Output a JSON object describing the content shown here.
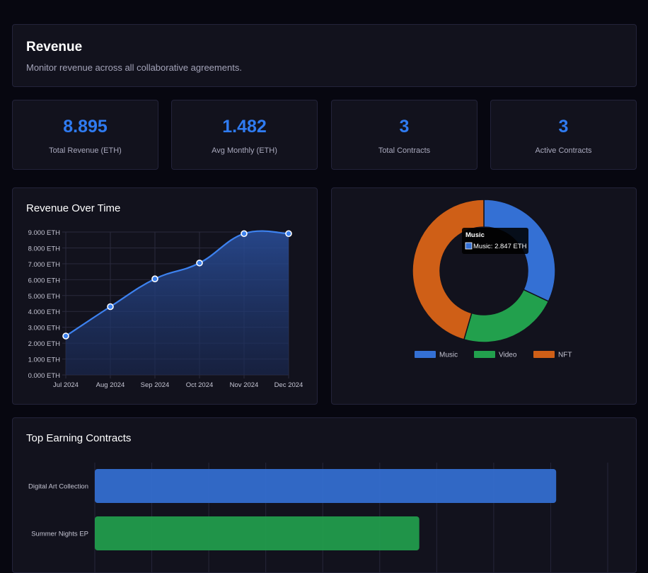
{
  "header": {
    "title": "Revenue",
    "subtitle": "Monitor revenue across all collaborative agreements."
  },
  "stats": [
    {
      "value": "8.895",
      "label": "Total Revenue (ETH)"
    },
    {
      "value": "1.482",
      "label": "Avg Monthly (ETH)"
    },
    {
      "value": "3",
      "label": "Total Contracts"
    },
    {
      "value": "3",
      "label": "Active Contracts"
    }
  ],
  "colors": {
    "accent": "#2f7bf1",
    "music": "#3470d4",
    "video": "#22a04d",
    "nft": "#cf5f17",
    "line": "#3d82f0"
  },
  "revenue_chart": {
    "title": "Revenue Over Time"
  },
  "category_chart": {
    "tooltip_title": "Music",
    "tooltip_text": "Music: 2.847 ETH"
  },
  "top_contracts": {
    "title": "Top Earning Contracts"
  },
  "chart_data": [
    {
      "type": "area",
      "title": "Revenue Over Time",
      "x": [
        "Jul 2024",
        "Aug 2024",
        "Sep 2024",
        "Oct 2024",
        "Nov 2024",
        "Dec 2024"
      ],
      "series": [
        {
          "values": [
            2.45,
            4.3,
            6.05,
            7.05,
            8.9,
            8.9
          ]
        }
      ],
      "yticks": [
        "0.000 ETH",
        "1.000 ETH",
        "2.000 ETH",
        "3.000 ETH",
        "4.000 ETH",
        "5.000 ETH",
        "6.000 ETH",
        "7.000 ETH",
        "8.000 ETH",
        "9.000 ETH"
      ],
      "ylim": [
        0,
        9
      ],
      "grid": true
    },
    {
      "type": "pie",
      "categories": [
        "Music",
        "Video",
        "NFT"
      ],
      "values": [
        2.847,
        2.0,
        4.048
      ],
      "legend": "bottom"
    },
    {
      "type": "bar",
      "title": "Top Earning Contracts",
      "categories": [
        "Digital Art Collection",
        "Summer Nights EP"
      ],
      "values": [
        4.048,
        2.847
      ],
      "xlim": [
        0,
        4.5
      ],
      "grid": true
    }
  ]
}
